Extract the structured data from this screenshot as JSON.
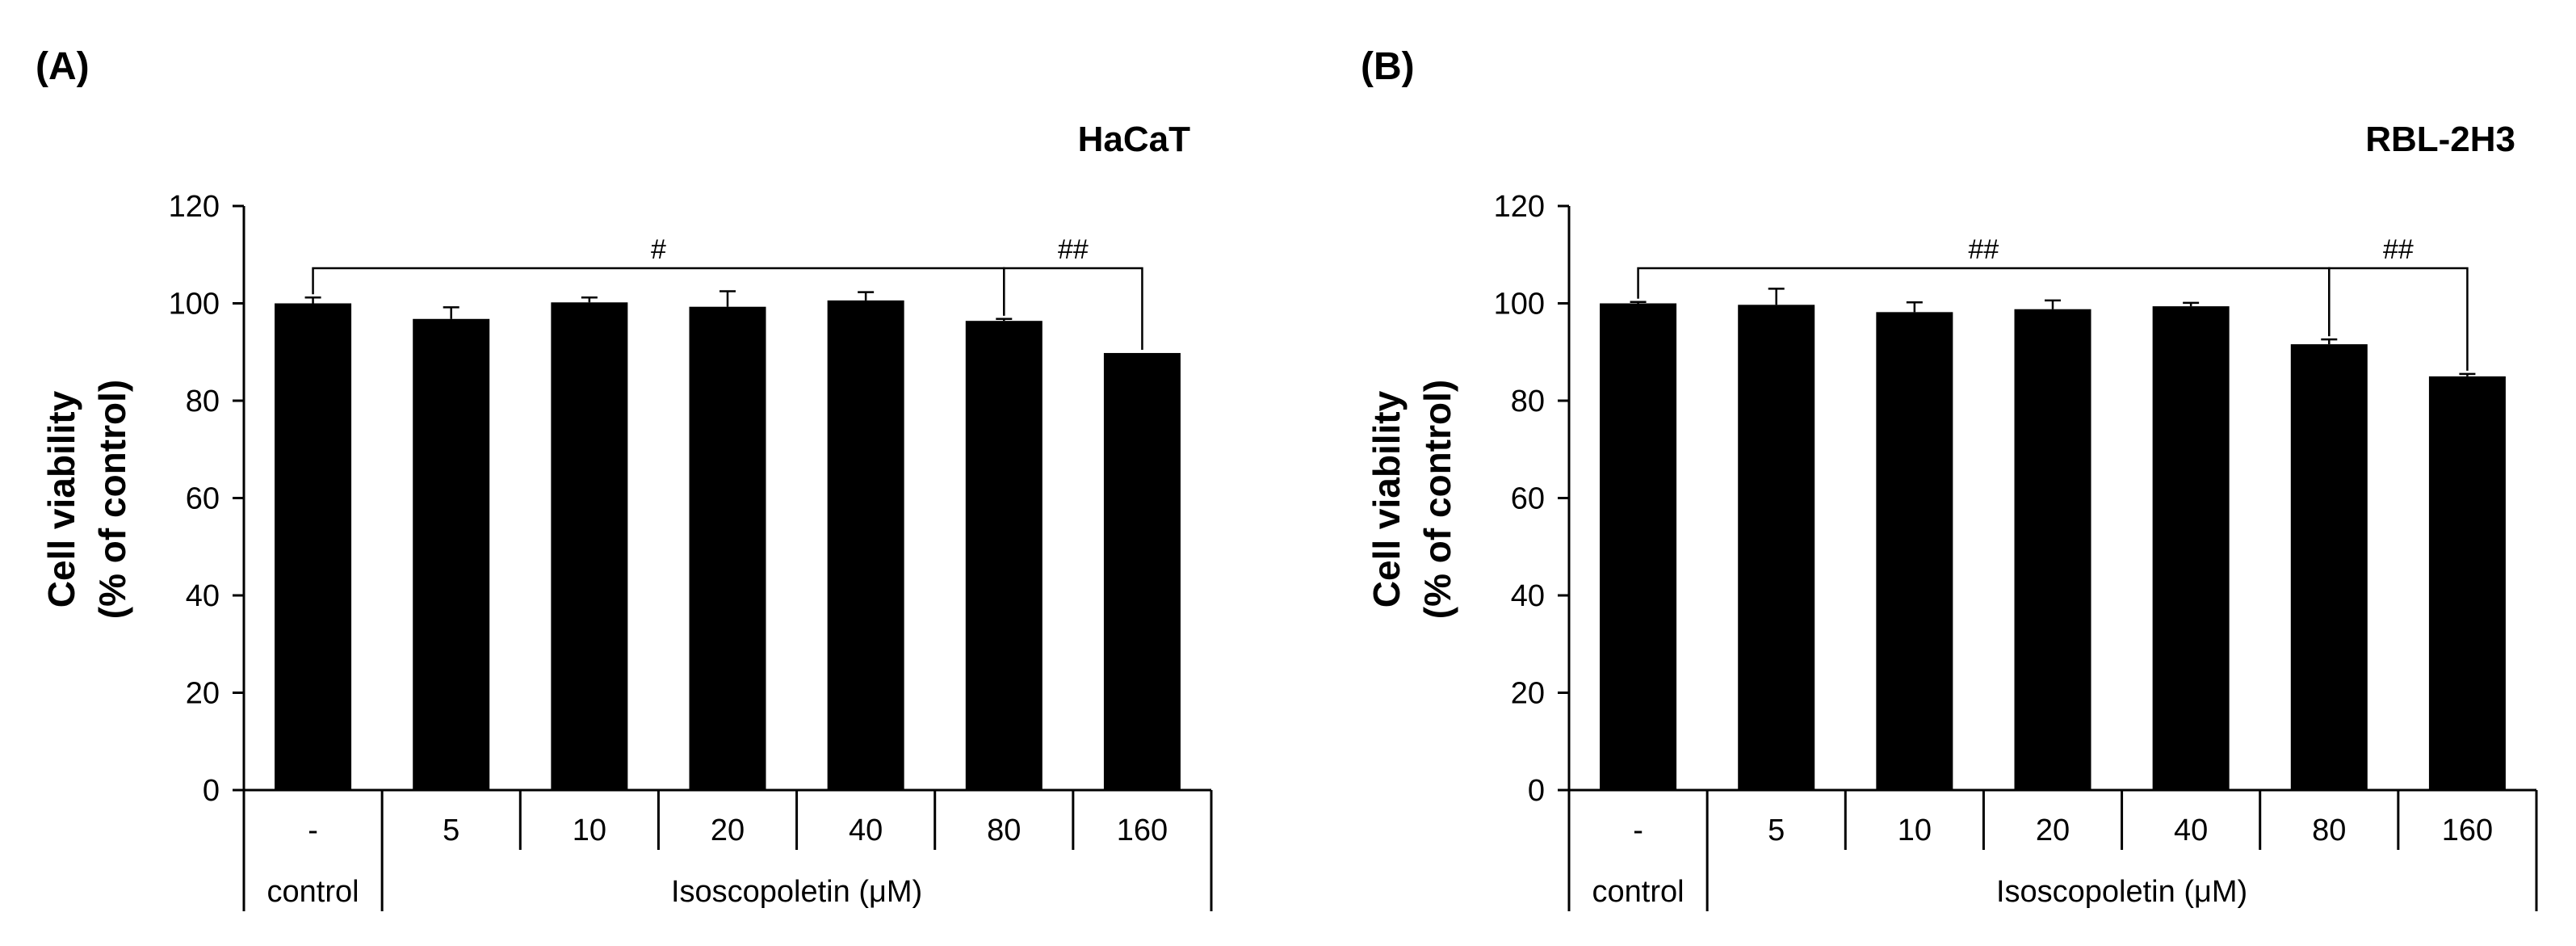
{
  "chart_data": [
    {
      "type": "bar",
      "panel_label": "(A)",
      "title": "HaCaT",
      "ylabel_line1": "Cell viability",
      "ylabel_line2": "(% of control)",
      "ylim": [
        0,
        120
      ],
      "yticks": [
        "0",
        "20",
        "40",
        "60",
        "80",
        "100",
        "120"
      ],
      "categories": [
        "-",
        "5",
        "10",
        "20",
        "40",
        "80",
        "160"
      ],
      "values": [
        100,
        96.8,
        100.2,
        99.3,
        100.6,
        96.4,
        89.8
      ],
      "errors": [
        1.2,
        2.4,
        1.0,
        3.2,
        1.7,
        0.4,
        0.0
      ],
      "group_labels": [
        "control",
        "Isoscopoletin (μM)"
      ],
      "significance": [
        {
          "from": 0,
          "to": 5,
          "label": "#"
        },
        {
          "from": 5,
          "to": 6,
          "label": "##"
        }
      ]
    },
    {
      "type": "bar",
      "panel_label": "(B)",
      "title": "RBL-2H3",
      "ylabel_line1": "Cell viability",
      "ylabel_line2": "(% of control)",
      "ylim": [
        0,
        120
      ],
      "yticks": [
        "0",
        "20",
        "40",
        "60",
        "80",
        "100",
        "120"
      ],
      "categories": [
        "-",
        "5",
        "10",
        "20",
        "40",
        "80",
        "160"
      ],
      "values": [
        100,
        99.7,
        98.2,
        98.8,
        99.4,
        91.6,
        85.0
      ],
      "errors": [
        0.3,
        3.3,
        2.0,
        1.8,
        0.7,
        1.0,
        0.5
      ],
      "group_labels": [
        "control",
        "Isoscopoletin (μM)"
      ],
      "significance": [
        {
          "from": 0,
          "to": 5,
          "label": "##"
        },
        {
          "from": 5,
          "to": 6,
          "label": "##"
        }
      ]
    }
  ]
}
